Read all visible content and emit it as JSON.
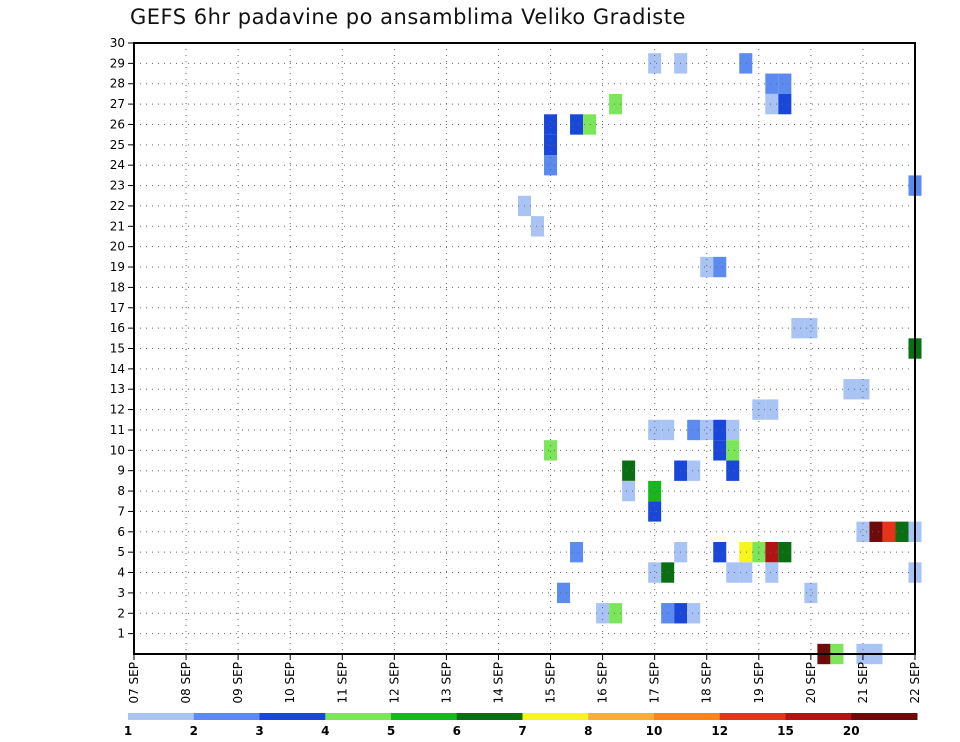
{
  "chart_data": {
    "type": "heatmap",
    "title": "GEFS 6hr padavine po ansamblima Veliko Gradiste",
    "xlabel": "",
    "ylabel": "",
    "x_tick_labels": [
      "07 SEP",
      "08 SEP",
      "09 SEP",
      "10 SEP",
      "11 SEP",
      "12 SEP",
      "13 SEP",
      "14 SEP",
      "15 SEP",
      "16 SEP",
      "17 SEP",
      "18 SEP",
      "19 SEP",
      "20 SEP",
      "21 SEP",
      "22 SEP"
    ],
    "x_range_steps": [
      0,
      60
    ],
    "steps_per_day": 4,
    "y_tick_labels": [
      "1",
      "2",
      "3",
      "4",
      "5",
      "6",
      "7",
      "8",
      "9",
      "10",
      "11",
      "12",
      "13",
      "14",
      "15",
      "16",
      "17",
      "18",
      "19",
      "20",
      "21",
      "22",
      "23",
      "24",
      "25",
      "26",
      "27",
      "28",
      "29",
      "30"
    ],
    "y_range": [
      0,
      30
    ],
    "grid": true,
    "legend": {
      "position": "bottom",
      "labels": [
        "1",
        "2",
        "3",
        "4",
        "5",
        "6",
        "7",
        "8",
        "10",
        "12",
        "15",
        "20"
      ],
      "colors": [
        "#a9c3f5",
        "#5b8af0",
        "#1847d9",
        "#7be65a",
        "#17b71d",
        "#0b6e12",
        "#f8f51a",
        "#f6ad3a",
        "#f7841c",
        "#e8331a",
        "#b01414",
        "#6e0a0a"
      ]
    },
    "cells": [
      {
        "member": 29,
        "step": 40,
        "class": 0
      },
      {
        "member": 29,
        "step": 42,
        "class": 0
      },
      {
        "member": 29,
        "step": 47,
        "class": 1
      },
      {
        "member": 28,
        "step": 49,
        "class": 1
      },
      {
        "member": 28,
        "step": 50,
        "class": 1
      },
      {
        "member": 27,
        "step": 37,
        "class": 3
      },
      {
        "member": 27,
        "step": 49,
        "class": 0
      },
      {
        "member": 27,
        "step": 50,
        "class": 2
      },
      {
        "member": 26,
        "step": 32,
        "class": 2
      },
      {
        "member": 26,
        "step": 34,
        "class": 2
      },
      {
        "member": 26,
        "step": 35,
        "class": 3
      },
      {
        "member": 25,
        "step": 32,
        "class": 2
      },
      {
        "member": 24,
        "step": 32,
        "class": 1
      },
      {
        "member": 23,
        "step": 60,
        "class": 1
      },
      {
        "member": 22,
        "step": 30,
        "class": 0
      },
      {
        "member": 21,
        "step": 31,
        "class": 0
      },
      {
        "member": 19,
        "step": 44,
        "class": 0
      },
      {
        "member": 19,
        "step": 45,
        "class": 1
      },
      {
        "member": 16,
        "step": 51,
        "class": 0
      },
      {
        "member": 16,
        "step": 52,
        "class": 0
      },
      {
        "member": 15,
        "step": 60,
        "class": 5
      },
      {
        "member": 13,
        "step": 55,
        "class": 0
      },
      {
        "member": 13,
        "step": 56,
        "class": 0
      },
      {
        "member": 12,
        "step": 48,
        "class": 0
      },
      {
        "member": 12,
        "step": 49,
        "class": 0
      },
      {
        "member": 11,
        "step": 40,
        "class": 0
      },
      {
        "member": 11,
        "step": 41,
        "class": 0
      },
      {
        "member": 11,
        "step": 43,
        "class": 1
      },
      {
        "member": 11,
        "step": 44,
        "class": 0
      },
      {
        "member": 11,
        "step": 45,
        "class": 2
      },
      {
        "member": 11,
        "step": 46,
        "class": 0
      },
      {
        "member": 10,
        "step": 32,
        "class": 3
      },
      {
        "member": 10,
        "step": 45,
        "class": 2
      },
      {
        "member": 10,
        "step": 46,
        "class": 3
      },
      {
        "member": 9,
        "step": 38,
        "class": 5
      },
      {
        "member": 9,
        "step": 42,
        "class": 2
      },
      {
        "member": 9,
        "step": 43,
        "class": 0
      },
      {
        "member": 9,
        "step": 46,
        "class": 2
      },
      {
        "member": 8,
        "step": 38,
        "class": 0
      },
      {
        "member": 8,
        "step": 40,
        "class": 4
      },
      {
        "member": 7,
        "step": 40,
        "class": 2
      },
      {
        "member": 6,
        "step": 56,
        "class": 0
      },
      {
        "member": 6,
        "step": 57,
        "class": 11
      },
      {
        "member": 6,
        "step": 58,
        "class": 9
      },
      {
        "member": 6,
        "step": 59,
        "class": 5
      },
      {
        "member": 6,
        "step": 60,
        "class": 0
      },
      {
        "member": 5,
        "step": 34,
        "class": 1
      },
      {
        "member": 5,
        "step": 42,
        "class": 0
      },
      {
        "member": 5,
        "step": 45,
        "class": 2
      },
      {
        "member": 5,
        "step": 47,
        "class": 6
      },
      {
        "member": 5,
        "step": 48,
        "class": 3
      },
      {
        "member": 5,
        "step": 49,
        "class": 10
      },
      {
        "member": 5,
        "step": 50,
        "class": 5
      },
      {
        "member": 4,
        "step": 40,
        "class": 0
      },
      {
        "member": 4,
        "step": 41,
        "class": 5
      },
      {
        "member": 4,
        "step": 46,
        "class": 0
      },
      {
        "member": 4,
        "step": 47,
        "class": 0
      },
      {
        "member": 4,
        "step": 49,
        "class": 0
      },
      {
        "member": 4,
        "step": 60,
        "class": 0
      },
      {
        "member": 3,
        "step": 33,
        "class": 1
      },
      {
        "member": 3,
        "step": 52,
        "class": 0
      },
      {
        "member": 2,
        "step": 36,
        "class": 0
      },
      {
        "member": 2,
        "step": 37,
        "class": 3
      },
      {
        "member": 2,
        "step": 41,
        "class": 1
      },
      {
        "member": 2,
        "step": 42,
        "class": 2
      },
      {
        "member": 2,
        "step": 43,
        "class": 0
      },
      {
        "member": 0,
        "step": 53,
        "class": 11
      },
      {
        "member": 0,
        "step": 54,
        "class": 3
      },
      {
        "member": 0,
        "step": 56,
        "class": 0
      },
      {
        "member": 0,
        "step": 57,
        "class": 0
      }
    ]
  }
}
